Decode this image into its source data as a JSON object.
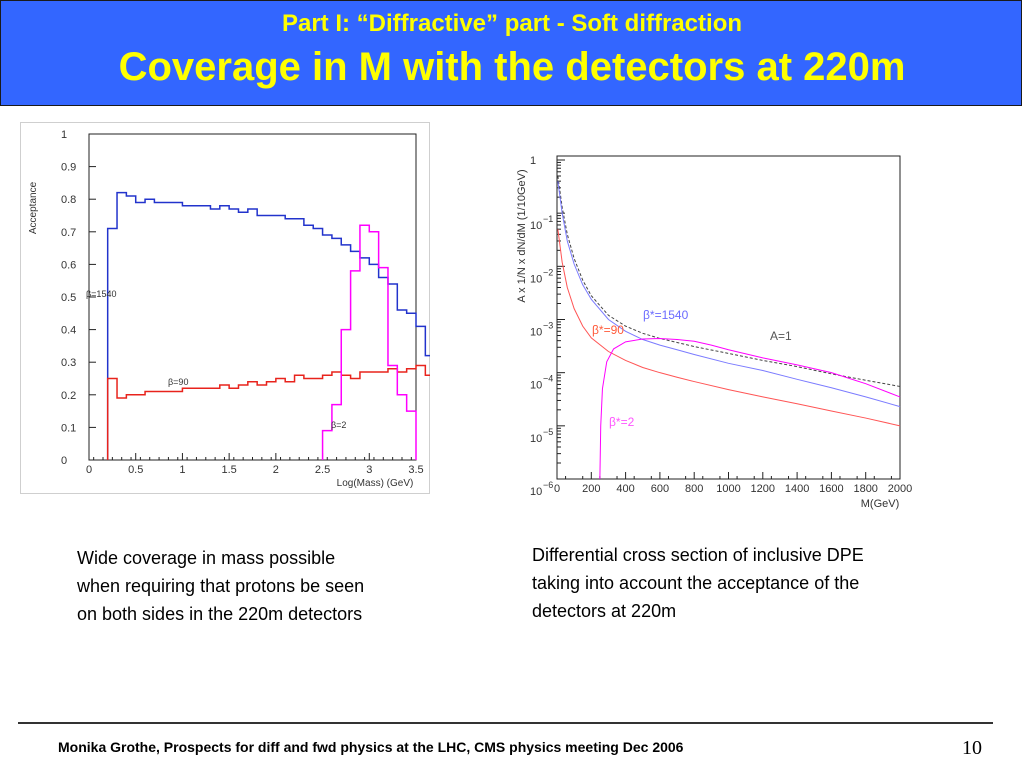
{
  "header": {
    "subtitle": "Part I: “Diffractive” part - Soft diffraction",
    "title": "Coverage in M with the detectors at 220m"
  },
  "captions": {
    "left": "Wide coverage in mass possible\nwhen requiring that protons be seen\non both sides in the 220m detectors",
    "right": "Differential cross section of inclusive DPE\ntaking into account the acceptance of the\ndetectors at 220m"
  },
  "footer": {
    "text": "Monika Grothe, Prospects for diff and fwd physics at the LHC, CMS physics meeting Dec 2006",
    "page_number": "10"
  },
  "colors": {
    "banner": "#3366ff",
    "title": "#ffff00",
    "blue": "#2233cc",
    "red": "#e8231c",
    "magenta": "#ff00ff",
    "light_blue": "#7b7bff",
    "light_red": "#ff5555"
  },
  "chart_data": [
    {
      "type": "histogram",
      "xlabel": "Log(Mass) (GeV)",
      "ylabel": "Acceptance",
      "xlim": [
        0,
        3.5
      ],
      "ylim": [
        0,
        1
      ],
      "x_ticks": [
        "0",
        "0.5",
        "1",
        "1.5",
        "2",
        "2.5",
        "3",
        "3.5"
      ],
      "y_ticks": [
        "0",
        "0.1",
        "0.2",
        "0.3",
        "0.4",
        "0.5",
        "0.6",
        "0.7",
        "0.8",
        "0.9",
        "1"
      ],
      "bin_width": 0.1,
      "series": [
        {
          "name": "β=1540",
          "color": "blue",
          "start": 0.2,
          "values": [
            0.71,
            0.82,
            0.81,
            0.79,
            0.8,
            0.79,
            0.79,
            0.79,
            0.78,
            0.78,
            0.78,
            0.77,
            0.78,
            0.77,
            0.76,
            0.77,
            0.75,
            0.75,
            0.75,
            0.74,
            0.74,
            0.72,
            0.71,
            0.69,
            0.68,
            0.66,
            0.64,
            0.62,
            0.6,
            0.56,
            0.54,
            0.46,
            0.45,
            0.41,
            0.32,
            0.24,
            0.15
          ]
        },
        {
          "name": "β=90",
          "color": "red",
          "start": 0.2,
          "values": [
            0.25,
            0.19,
            0.2,
            0.2,
            0.21,
            0.21,
            0.21,
            0.21,
            0.22,
            0.22,
            0.22,
            0.22,
            0.23,
            0.22,
            0.23,
            0.24,
            0.23,
            0.24,
            0.25,
            0.24,
            0.26,
            0.25,
            0.25,
            0.26,
            0.27,
            0.26,
            0.25,
            0.27,
            0.27,
            0.27,
            0.28,
            0.27,
            0.28,
            0.29,
            0.26,
            0.21,
            0.15
          ]
        },
        {
          "name": "β=2",
          "color": "magenta",
          "start": 2.5,
          "values": [
            0.09,
            0.17,
            0.4,
            0.58,
            0.72,
            0.7,
            0.59,
            0.29,
            0.2,
            0.15
          ]
        }
      ],
      "annotations": [
        "β=1540",
        "β=90",
        "β=2"
      ]
    },
    {
      "type": "line",
      "xlabel": "M(GeV)",
      "ylabel": "A x 1/N x dN/dM (1/10GeV)",
      "xlim": [
        0,
        2000
      ],
      "y_scale": "log",
      "ylim": [
        1e-06,
        1
      ],
      "x_ticks": [
        "0",
        "200",
        "400",
        "600",
        "800",
        "1000",
        "1200",
        "1400",
        "1600",
        "1800",
        "2000"
      ],
      "y_ticks": [
        {
          "base": "1",
          "exp": ""
        },
        {
          "base": "10",
          "exp": "−1"
        },
        {
          "base": "10",
          "exp": "−2"
        },
        {
          "base": "10",
          "exp": "−3"
        },
        {
          "base": "10",
          "exp": "−4"
        },
        {
          "base": "10",
          "exp": "−5"
        },
        {
          "base": "10",
          "exp": "−6"
        }
      ],
      "series": [
        {
          "name": "A=1",
          "color": "dark",
          "dash": true,
          "x": [
            5,
            30,
            60,
            100,
            150,
            200,
            300,
            400,
            500,
            600,
            700,
            800,
            1000,
            1200,
            1400,
            1600,
            1800,
            2000
          ],
          "y": [
            0.5,
            0.13,
            0.04,
            0.014,
            0.0055,
            0.0028,
            0.0012,
            0.00075,
            0.00055,
            0.00044,
            0.00037,
            0.00031,
            0.00023,
            0.00017,
            0.00013,
            9.5e-05,
            7.2e-05,
            5.5e-05
          ]
        },
        {
          "name": "β*=1540",
          "color": "light_blue",
          "x": [
            5,
            30,
            60,
            100,
            150,
            200,
            300,
            400,
            500,
            600,
            700,
            800,
            1000,
            1200,
            1400,
            1600,
            1800,
            2000
          ],
          "y": [
            0.4,
            0.1,
            0.03,
            0.011,
            0.0045,
            0.0024,
            0.001,
            0.0006,
            0.00042,
            0.00033,
            0.00027,
            0.00022,
            0.00015,
            0.00011,
            7.5e-05,
            5.2e-05,
            3.5e-05,
            2.3e-05
          ]
        },
        {
          "name": "β*=90",
          "color": "light_red",
          "x": [
            5,
            30,
            60,
            100,
            150,
            200,
            300,
            400,
            500,
            600,
            700,
            800,
            1000,
            1200,
            1400,
            1600,
            1800,
            2000
          ],
          "y": [
            0.05,
            0.012,
            0.004,
            0.0016,
            0.00075,
            0.00045,
            0.00025,
            0.00017,
            0.000125,
            0.0001,
            8.2e-05,
            6.8e-05,
            4.8e-05,
            3.5e-05,
            2.6e-05,
            1.9e-05,
            1.4e-05,
            1e-05
          ]
        },
        {
          "name": "β*=2",
          "color": "magenta",
          "x": [
            250,
            255,
            265,
            290,
            330,
            400,
            500,
            600,
            700,
            800,
            900,
            1000,
            1200,
            1400,
            1600,
            1800,
            2000
          ],
          "y": [
            1e-06,
            1e-05,
            5e-05,
            0.00016,
            0.00028,
            0.00038,
            0.00043,
            0.00044,
            0.00042,
            0.00039,
            0.00033,
            0.00027,
            0.00019,
            0.00014,
            0.0001,
            6.2e-05,
            3.5e-05
          ]
        }
      ],
      "annotations": [
        "β*=1540",
        "β*=90",
        "A=1",
        "β*=2"
      ]
    }
  ]
}
